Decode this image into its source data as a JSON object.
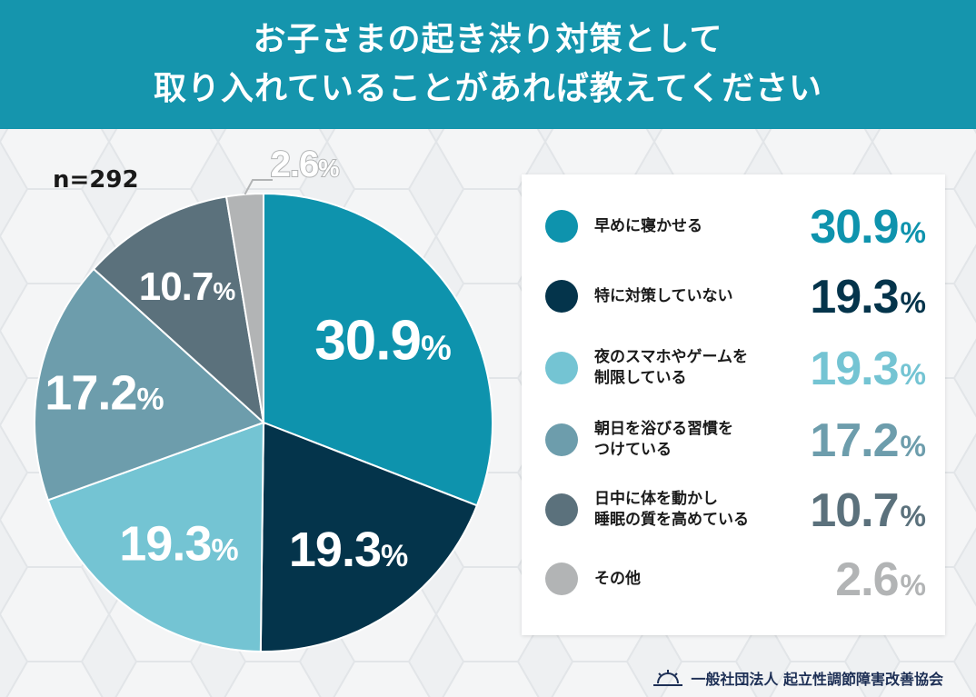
{
  "header": {
    "title_line1": "お子さまの起き渋り対策として",
    "title_line2": "取り入れていることがあれば教えてください"
  },
  "sample": {
    "label": "n=292"
  },
  "chart_data": {
    "type": "pie",
    "title": "お子さまの起き渋り対策として取り入れていることがあれば教えてください",
    "n": 292,
    "categories": [
      "早めに寝かせる",
      "特に対策していない",
      "夜のスマホやゲームを制限している",
      "朝日を浴びる習慣をつけている",
      "日中に体を動かし睡眠の質を高めている",
      "その他"
    ],
    "values": [
      30.9,
      19.3,
      19.3,
      17.2,
      10.7,
      2.6
    ],
    "colors": [
      "#0e93ad",
      "#04344b",
      "#74c4d3",
      "#6d9dac",
      "#5b717c",
      "#b2b4b5"
    ],
    "unit": "%",
    "legend": "right"
  },
  "legend": {
    "items": [
      {
        "label_lines": [
          "早めに寝かせる"
        ],
        "value": "30.9",
        "pct": "%"
      },
      {
        "label_lines": [
          "特に対策していない"
        ],
        "value": "19.3",
        "pct": "%"
      },
      {
        "label_lines": [
          "夜のスマホやゲームを",
          "制限している"
        ],
        "value": "19.3",
        "pct": "%"
      },
      {
        "label_lines": [
          "朝日を浴びる習慣を",
          "つけている"
        ],
        "value": "17.2",
        "pct": "%"
      },
      {
        "label_lines": [
          "日中に体を動かし",
          "睡眠の質を高めている"
        ],
        "value": "10.7",
        "pct": "%"
      },
      {
        "label_lines": [
          "その他"
        ],
        "value": "2.6",
        "pct": "%"
      }
    ]
  },
  "footer": {
    "org": "一般社団法人 起立性調節障害改善協会",
    "logo_icon": "sunrise-logo-icon"
  }
}
